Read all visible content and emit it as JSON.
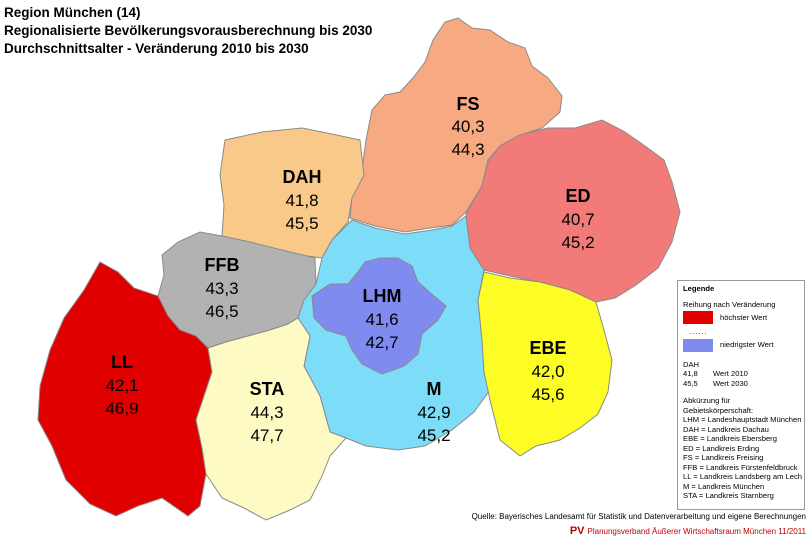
{
  "header": {
    "line1": "Region München (14)",
    "line2": "Regionalisierte Bevölkerungsvorausberechnung bis 2030",
    "line3": "Durchschnittsalter - Veränderung 2010 bis 2030"
  },
  "districts": [
    {
      "code": "FS",
      "v2010": "40,3",
      "v2030": "44,3",
      "color": "#f7a981"
    },
    {
      "code": "DAH",
      "v2010": "41,8",
      "v2030": "45,5",
      "color": "#f9c98a"
    },
    {
      "code": "ED",
      "v2010": "40,7",
      "v2030": "45,2",
      "color": "#f27b7a"
    },
    {
      "code": "FFB",
      "v2010": "43,3",
      "v2030": "46,5",
      "color": "#b2b2b2"
    },
    {
      "code": "LHM",
      "v2010": "41,6",
      "v2030": "42,7",
      "color": "#7f8bef"
    },
    {
      "code": "EBE",
      "v2010": "42,0",
      "v2030": "45,6",
      "color": "#fefc25"
    },
    {
      "code": "LL",
      "v2010": "42,1",
      "v2030": "46,9",
      "color": "#e00000"
    },
    {
      "code": "STA",
      "v2010": "44,3",
      "v2030": "47,7",
      "color": "#fefac4"
    },
    {
      "code": "M",
      "v2010": "42,9",
      "v2030": "45,2",
      "color": "#7ddcf7"
    }
  ],
  "legend": {
    "title": "Legende",
    "ranking": "Reihung nach Veränderung",
    "highest": "höchster Wert",
    "dots": "......",
    "lowest": "niedrigster Wert",
    "highest_color": "#e00000",
    "lowest_color": "#7f8bef",
    "ex_code": "DAH",
    "ex_2010_val": "41,8",
    "ex_2010_lbl": "Wert 2010",
    "ex_2030_val": "45,5",
    "ex_2030_lbl": "Wert 2030",
    "abbr_title": "Abkürzung für Gebietskörperschaft:",
    "abbr": [
      "LHM = Landeshauptstadt München",
      "DAH = Landkreis Dachau",
      "EBE = Landkreis Ebersberg",
      "ED = Landkreis Erding",
      "FS = Landkreis Freising",
      "FFB = Landkreis Fürstenfeldbruck",
      "LL = Landkreis Landsberg am Lech",
      "M = Landkreis München",
      "STA = Landkreis Starnberg"
    ]
  },
  "source": "Quelle: Bayerisches Landesamt für Statistik und Datenverarbeitung und eigene Berechnungen",
  "footer": {
    "logo": "PV",
    "text": "Planungsverband Äußerer Wirtschaftsraum München 11/2011"
  }
}
